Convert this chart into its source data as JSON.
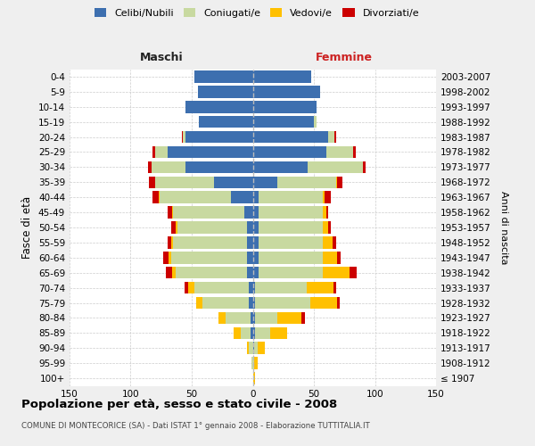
{
  "age_groups": [
    "100+",
    "95-99",
    "90-94",
    "85-89",
    "80-84",
    "75-79",
    "70-74",
    "65-69",
    "60-64",
    "55-59",
    "50-54",
    "45-49",
    "40-44",
    "35-39",
    "30-34",
    "25-29",
    "20-24",
    "15-19",
    "10-14",
    "5-9",
    "0-4"
  ],
  "birth_years": [
    "≤ 1907",
    "1908-1912",
    "1913-1917",
    "1918-1922",
    "1923-1927",
    "1928-1932",
    "1933-1937",
    "1938-1942",
    "1943-1947",
    "1948-1952",
    "1953-1957",
    "1958-1962",
    "1963-1967",
    "1968-1972",
    "1973-1977",
    "1978-1982",
    "1983-1987",
    "1988-1992",
    "1993-1997",
    "1998-2002",
    "2003-2007"
  ],
  "male_celibi": [
    0,
    0,
    0,
    2,
    2,
    3,
    3,
    5,
    5,
    5,
    5,
    7,
    18,
    32,
    55,
    70,
    55,
    44,
    55,
    45,
    48
  ],
  "male_coniugati": [
    0,
    1,
    3,
    8,
    20,
    38,
    45,
    58,
    62,
    60,
    57,
    58,
    58,
    48,
    28,
    10,
    2,
    0,
    0,
    0,
    0
  ],
  "male_vedovi": [
    0,
    0,
    2,
    6,
    6,
    5,
    5,
    3,
    2,
    2,
    1,
    1,
    1,
    0,
    0,
    0,
    0,
    0,
    0,
    0,
    0
  ],
  "male_divorziati": [
    0,
    0,
    0,
    0,
    0,
    0,
    3,
    5,
    4,
    3,
    4,
    4,
    5,
    5,
    3,
    2,
    1,
    0,
    0,
    0,
    0
  ],
  "female_celibi": [
    0,
    0,
    1,
    2,
    2,
    2,
    2,
    5,
    5,
    5,
    5,
    5,
    5,
    20,
    45,
    60,
    62,
    50,
    52,
    55,
    48
  ],
  "female_coniugati": [
    0,
    1,
    3,
    12,
    18,
    45,
    42,
    52,
    52,
    52,
    52,
    52,
    52,
    48,
    45,
    22,
    5,
    2,
    0,
    0,
    0
  ],
  "female_vedovi": [
    2,
    3,
    6,
    14,
    20,
    22,
    22,
    22,
    12,
    8,
    5,
    3,
    2,
    1,
    0,
    0,
    0,
    0,
    0,
    0,
    0
  ],
  "female_divorziati": [
    0,
    0,
    0,
    0,
    3,
    2,
    2,
    6,
    3,
    3,
    2,
    2,
    5,
    4,
    2,
    2,
    1,
    0,
    0,
    0,
    0
  ],
  "color_celibi": "#3d6faf",
  "color_coniugati": "#c8d9a0",
  "color_vedovi": "#ffc000",
  "color_divorziati": "#cc0000",
  "title": "Popolazione per età, sesso e stato civile - 2008",
  "subtitle": "COMUNE DI MONTECORICE (SA) - Dati ISTAT 1° gennaio 2008 - Elaborazione TUTTITALIA.IT",
  "xlabel_left": "Maschi",
  "xlabel_right": "Femmine",
  "ylabel_left": "Fasce di età",
  "ylabel_right": "Anni di nascita",
  "xlim": 150,
  "background_color": "#efefef",
  "plot_bg_color": "#ffffff",
  "grid_color": "#cccccc"
}
